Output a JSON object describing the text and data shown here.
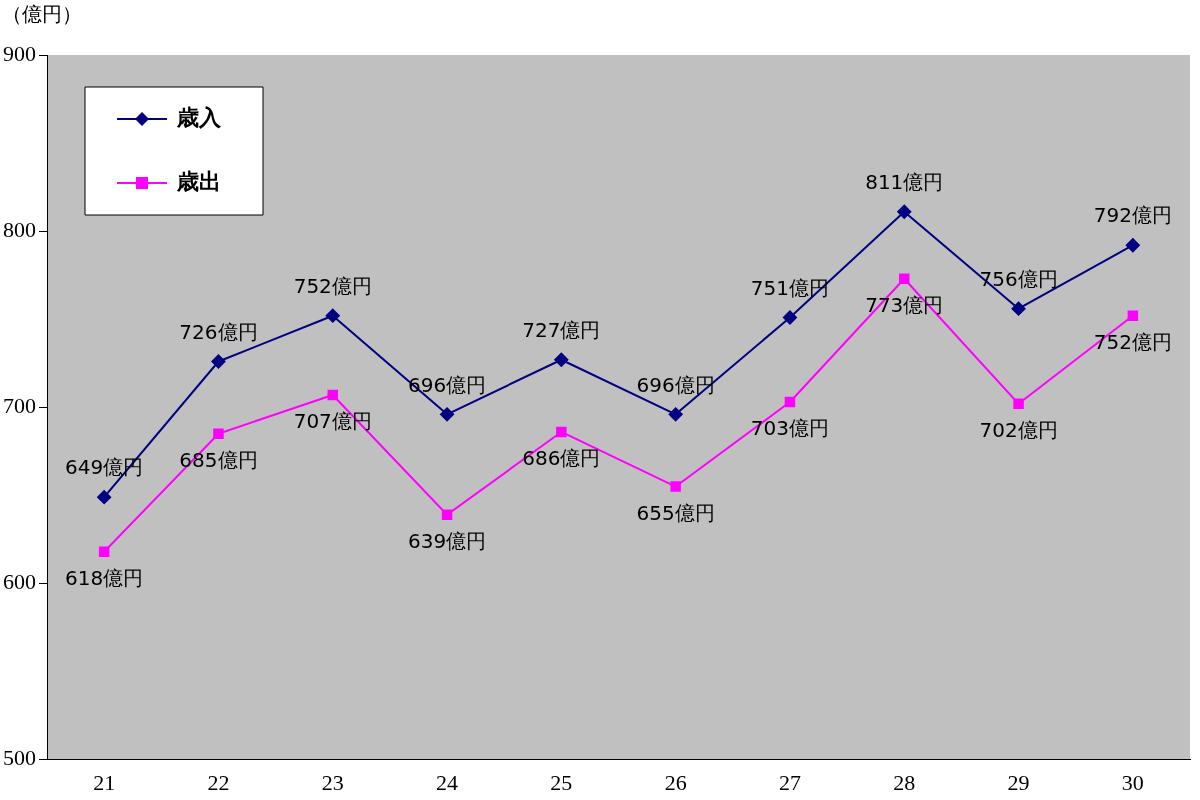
{
  "chart_data": {
    "type": "line",
    "ylabel": "（億円）",
    "categories": [
      "21",
      "22",
      "23",
      "24",
      "25",
      "26",
      "27",
      "28",
      "29",
      "30"
    ],
    "series": [
      {
        "name": "歳入",
        "color": "#000080",
        "marker": "diamond",
        "values": [
          649,
          726,
          752,
          696,
          727,
          696,
          751,
          811,
          756,
          792
        ],
        "value_labels": [
          "649億円",
          "726億円",
          "752億円",
          "696億円",
          "727億円",
          "696億円",
          "751億円",
          "811億円",
          "756億円",
          "792億円"
        ]
      },
      {
        "name": "歳出",
        "color": "#ff00ff",
        "marker": "square",
        "values": [
          618,
          685,
          707,
          639,
          686,
          655,
          703,
          773,
          702,
          752
        ],
        "value_labels": [
          "618億円",
          "685億円",
          "707億円",
          "639億円",
          "686億円",
          "655億円",
          "703億円",
          "773億円",
          "702億円",
          "752億円"
        ]
      }
    ],
    "ylim": [
      500,
      900
    ],
    "yticks": [
      500,
      600,
      700,
      800,
      900
    ],
    "grid": false,
    "legend": "top left",
    "line_style": "solid"
  }
}
